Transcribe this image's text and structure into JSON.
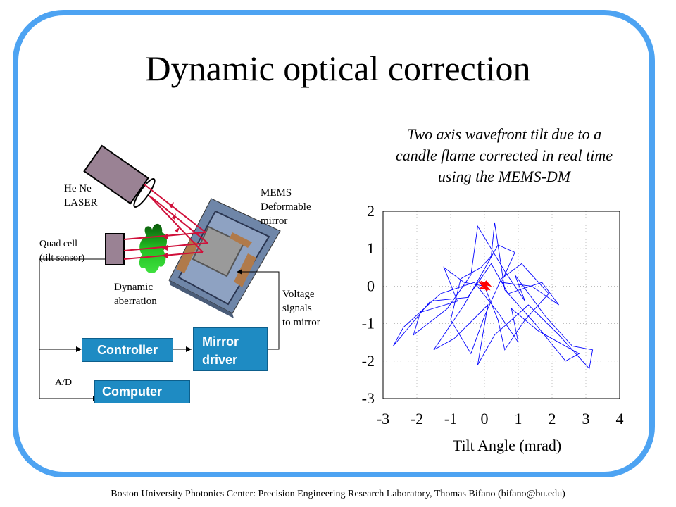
{
  "title": "Dynamic optical correction",
  "caption_lines": [
    "Two axis wavefront tilt due to a",
    "candle flame corrected in real time",
    "using the MEMS-DM"
  ],
  "footer": "Boston University Photonics Center: Precision Engineering Research Laboratory, Thomas Bifano (bifano@bu.edu)",
  "diagram": {
    "laser_label": [
      "He Ne",
      "LASER"
    ],
    "mems_label": [
      "MEMS",
      "Deformable",
      "mirror"
    ],
    "quad_label": [
      "Quad cell",
      "(tilt sensor)"
    ],
    "aberration_label": [
      "Dynamic",
      "aberration"
    ],
    "voltage_label": [
      "Voltage",
      "signals",
      "to mirror"
    ],
    "controller": "Controller",
    "mirror_driver": [
      "Mirror",
      "driver"
    ],
    "computer": "Computer",
    "ad_label": "A/D"
  },
  "colors": {
    "frame": "#4da3f2",
    "box": "#1e8bc3",
    "beam": "#d0103a",
    "trace_uncorrected": "#0000ff",
    "trace_corrected": "#ff0000",
    "flame": "#22c022"
  },
  "chart_data": {
    "type": "line",
    "xlabel": "Tilt Angle (mrad)",
    "xlim": [
      -3,
      4
    ],
    "ylim": [
      -3,
      2
    ],
    "xticks": [
      -3,
      -2,
      -1,
      0,
      1,
      2,
      3,
      4
    ],
    "yticks": [
      2,
      1,
      0,
      -1,
      -2,
      -3
    ],
    "grid": true,
    "series": [
      {
        "color": "#0000ff",
        "points": [
          [
            0,
            0
          ],
          [
            -0.6,
            0.1
          ],
          [
            -1.2,
            0.5
          ],
          [
            -0.8,
            -0.4
          ],
          [
            -1.9,
            -0.7
          ],
          [
            -2.1,
            -1.3
          ],
          [
            -1.1,
            -0.6
          ],
          [
            -0.4,
            0.3
          ],
          [
            -0.2,
            1.6
          ],
          [
            0.6,
            0.4
          ],
          [
            1.2,
            -0.4
          ],
          [
            0.9,
            0.3
          ],
          [
            1.8,
            -0.8
          ],
          [
            2.6,
            -1.6
          ],
          [
            3.2,
            -1.7
          ],
          [
            3.1,
            -2.2
          ],
          [
            2.2,
            -1.3
          ],
          [
            1.3,
            -0.5
          ],
          [
            0.3,
            -1.3
          ],
          [
            -0.2,
            -2.1
          ],
          [
            0.1,
            -0.5
          ],
          [
            -0.9,
            -1.4
          ],
          [
            -1.5,
            -1.7
          ],
          [
            -0.6,
            -0.5
          ],
          [
            0.4,
            1.1
          ],
          [
            0.9,
            0.9
          ],
          [
            0.5,
            0.1
          ],
          [
            1.4,
            0.0
          ],
          [
            2.2,
            -0.5
          ],
          [
            1.7,
            0.1
          ],
          [
            0.7,
            -0.2
          ],
          [
            0.2,
            0.6
          ],
          [
            -0.5,
            -0.3
          ],
          [
            -1.6,
            -0.4
          ],
          [
            -2.7,
            -1.6
          ],
          [
            -2.4,
            -1.1
          ],
          [
            -1.3,
            -0.2
          ],
          [
            -0.3,
            0.1
          ],
          [
            0.4,
            -0.7
          ],
          [
            1.0,
            -1.5
          ],
          [
            0.8,
            -0.6
          ],
          [
            1.6,
            -1.2
          ],
          [
            2.8,
            -1.8
          ],
          [
            2.4,
            -2.0
          ],
          [
            1.5,
            -1.0
          ],
          [
            0.6,
            -0.1
          ],
          [
            0.3,
            1.7
          ],
          [
            0.2,
            0.8
          ],
          [
            -0.1,
            0.5
          ],
          [
            -0.7,
            0.2
          ],
          [
            -1.0,
            -0.9
          ],
          [
            -0.4,
            -1.8
          ],
          [
            0.0,
            -0.8
          ],
          [
            0.5,
            0.2
          ],
          [
            1.1,
            0.6
          ],
          [
            1.9,
            -0.2
          ],
          [
            1.2,
            -0.9
          ],
          [
            0.6,
            -1.7
          ],
          [
            0.4,
            -0.9
          ],
          [
            0.0,
            0.0
          ]
        ]
      },
      {
        "color": "#ff0000",
        "points": [
          [
            0,
            0
          ],
          [
            0.1,
            0.05
          ],
          [
            -0.05,
            0.1
          ],
          [
            0.12,
            -0.08
          ],
          [
            -0.1,
            -0.05
          ],
          [
            0.05,
            0.12
          ],
          [
            0.15,
            0.02
          ],
          [
            -0.12,
            0.08
          ],
          [
            0.08,
            -0.12
          ],
          [
            0,
            0
          ]
        ]
      }
    ]
  }
}
